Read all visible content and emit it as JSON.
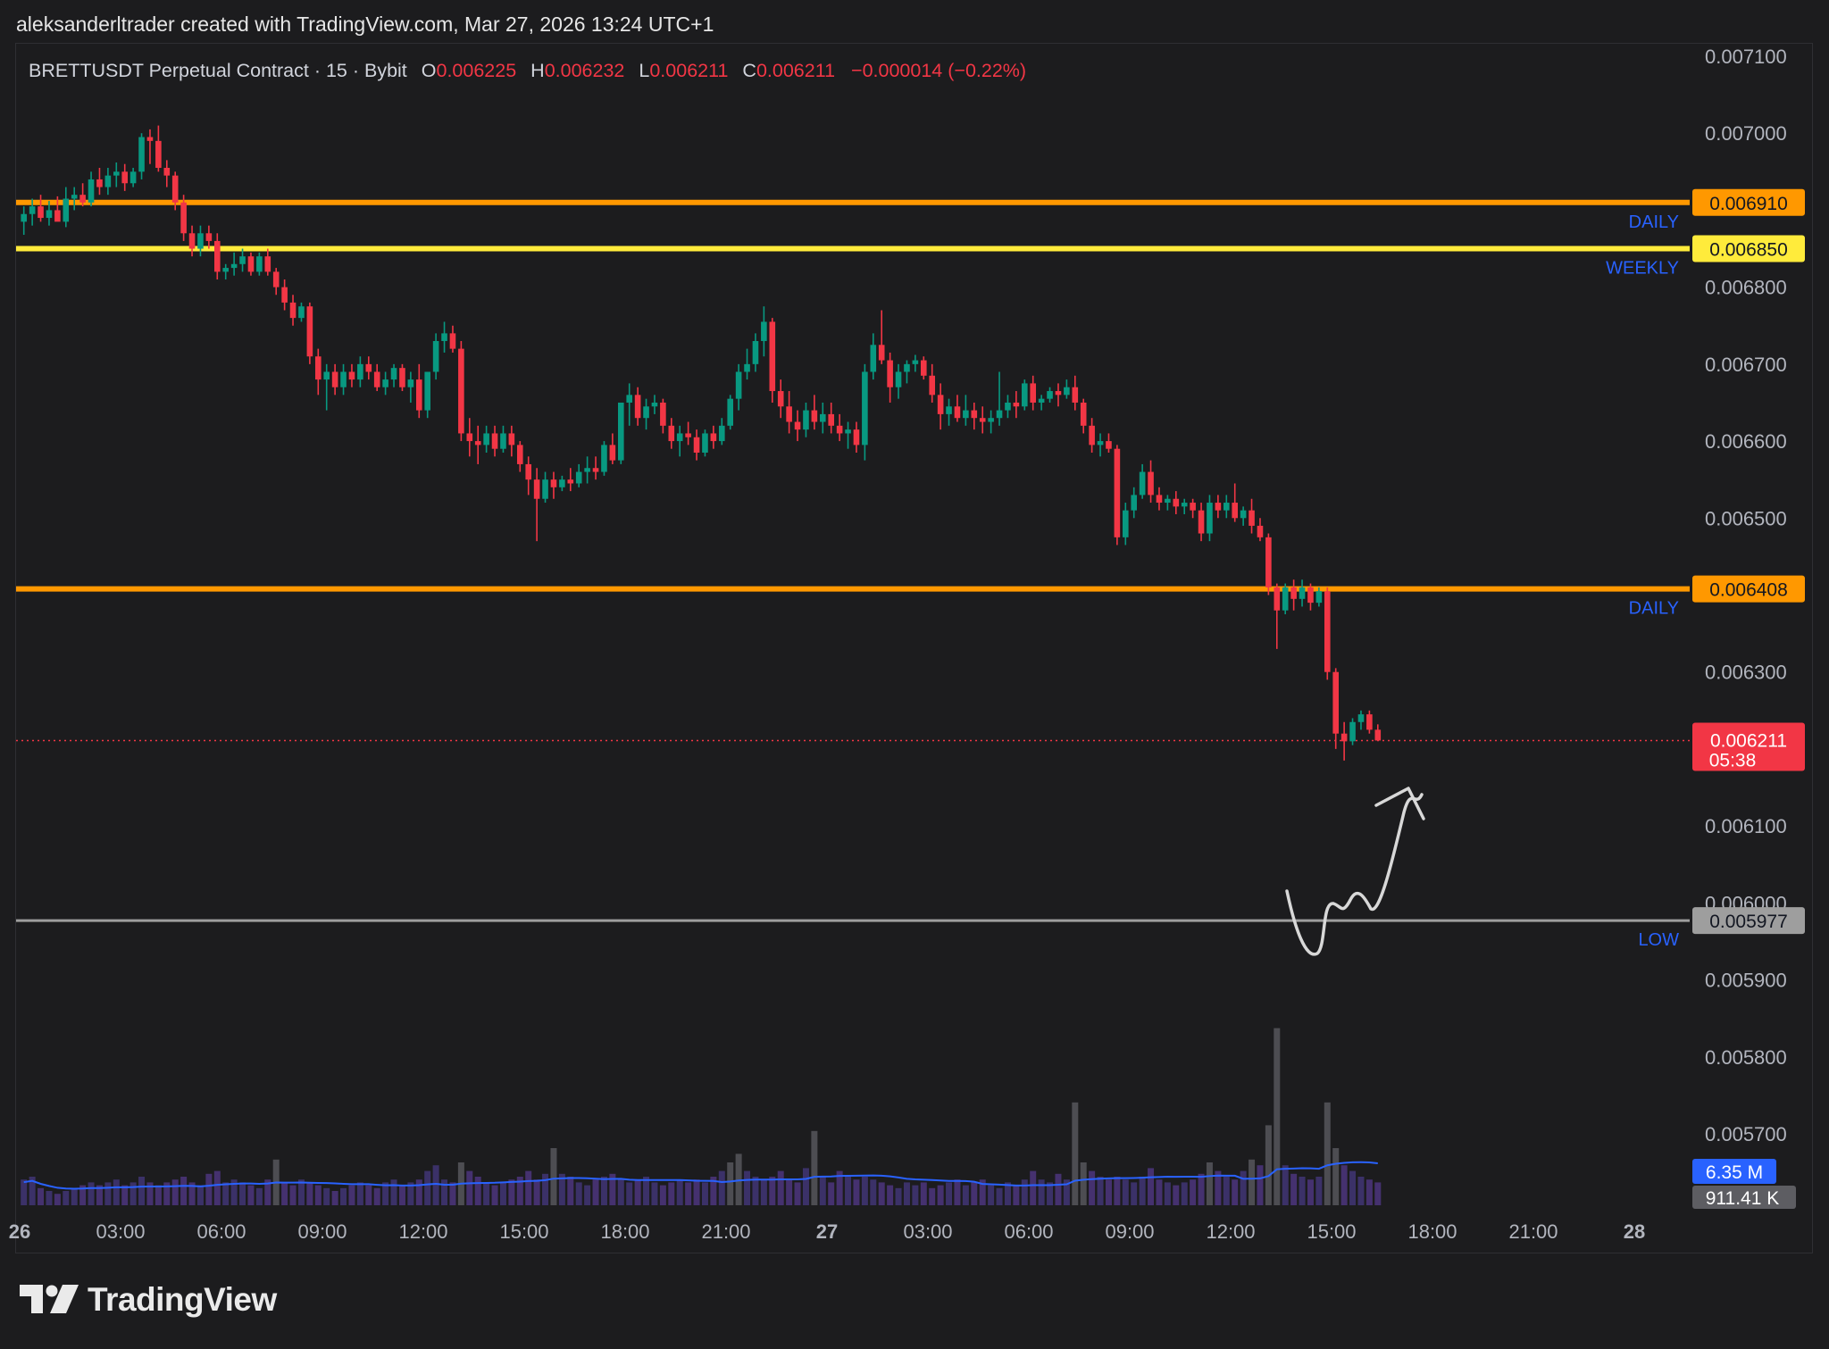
{
  "header": {
    "attribution": "aleksanderltrader created with TradingView.com, Mar 27, 2026 13:24 UTC+1"
  },
  "legend": {
    "symbol": "BRETTUSDT Perpetual Contract · 15 · Bybit",
    "open_label": "O",
    "open": "0.006225",
    "high_label": "H",
    "high": "0.006232",
    "low_label": "L",
    "low": "0.006211",
    "close_label": "C",
    "close": "0.006211",
    "change": "−0.000014 (−0.22%)"
  },
  "footer": {
    "brand": "TradingView"
  },
  "colors": {
    "background": "#1c1c1e",
    "bull": "#089981",
    "bear": "#f23645",
    "daily_level": "#ff9800",
    "weekly_level": "#ffeb3b",
    "low_level": "#9e9e9e",
    "label_blue": "#2962ff",
    "volume_ma": "#2962ff"
  },
  "chart_data": {
    "type": "candlestick",
    "symbol": "BRETTUSDT",
    "timeframe": "15",
    "exchange": "Bybit",
    "ylim": [
      0.00564,
      0.00714
    ],
    "y_ticks": [
      "0.007100",
      "0.007000",
      "0.006800",
      "0.006700",
      "0.006600",
      "0.006500",
      "0.006300",
      "0.006100",
      "0.006000",
      "0.005900",
      "0.005800",
      "0.005700"
    ],
    "x_ticks": [
      {
        "label": "26",
        "bold": true
      },
      {
        "label": "03:00"
      },
      {
        "label": "06:00"
      },
      {
        "label": "09:00"
      },
      {
        "label": "12:00"
      },
      {
        "label": "15:00"
      },
      {
        "label": "18:00"
      },
      {
        "label": "21:00"
      },
      {
        "label": "27",
        "bold": true
      },
      {
        "label": "03:00"
      },
      {
        "label": "06:00"
      },
      {
        "label": "09:00"
      },
      {
        "label": "12:00"
      },
      {
        "label": "15:00"
      },
      {
        "label": "18:00"
      },
      {
        "label": "21:00"
      },
      {
        "label": "28",
        "bold": true
      }
    ],
    "levels": [
      {
        "name": "DAILY",
        "value": 0.00691,
        "label": "0.006910",
        "color": "#ff9800",
        "label_text_color": "#131722"
      },
      {
        "name": "WEEKLY",
        "value": 0.00685,
        "label": "0.006850",
        "color": "#ffeb3b",
        "label_text_color": "#131722"
      },
      {
        "name": "DAILY",
        "value": 0.006408,
        "label": "0.006408",
        "color": "#ff9800",
        "label_text_color": "#131722"
      },
      {
        "name": "LOW",
        "value": 0.005977,
        "label": "0.005977",
        "color": "#9e9e9e",
        "label_text_color": "#131722"
      }
    ],
    "last_price": {
      "value": 0.006211,
      "label": "0.006211",
      "countdown": "05:38"
    },
    "volume_ma_label": "6.35 M",
    "volume_label": "911.41 K",
    "candles": [
      [
        0.006885,
        0.006905,
        0.006868,
        0.006895
      ],
      [
        0.006895,
        0.006915,
        0.00688,
        0.006905
      ],
      [
        0.006905,
        0.00692,
        0.006885,
        0.00689
      ],
      [
        0.00689,
        0.006912,
        0.00688,
        0.0069
      ],
      [
        0.0069,
        0.006918,
        0.00689,
        0.006885
      ],
      [
        0.006885,
        0.00693,
        0.006878,
        0.006915
      ],
      [
        0.006915,
        0.00693,
        0.0069,
        0.00692
      ],
      [
        0.00692,
        0.006935,
        0.006905,
        0.00691
      ],
      [
        0.00691,
        0.00695,
        0.006905,
        0.00694
      ],
      [
        0.00694,
        0.006955,
        0.00692,
        0.00693
      ],
      [
        0.00693,
        0.006955,
        0.00692,
        0.006945
      ],
      [
        0.006945,
        0.006962,
        0.00693,
        0.00695
      ],
      [
        0.00695,
        0.00696,
        0.006925,
        0.006935
      ],
      [
        0.006935,
        0.006955,
        0.00693,
        0.00695
      ],
      [
        0.00695,
        0.007,
        0.00694,
        0.006995
      ],
      [
        0.006995,
        0.007005,
        0.00696,
        0.00699
      ],
      [
        0.00699,
        0.00701,
        0.00695,
        0.006955
      ],
      [
        0.006955,
        0.006965,
        0.00693,
        0.006945
      ],
      [
        0.006945,
        0.00695,
        0.0069,
        0.00691
      ],
      [
        0.00691,
        0.00692,
        0.00686,
        0.00687
      ],
      [
        0.00687,
        0.00688,
        0.00684,
        0.00685
      ],
      [
        0.00685,
        0.00688,
        0.00684,
        0.00687
      ],
      [
        0.00687,
        0.00688,
        0.00685,
        0.00686
      ],
      [
        0.00686,
        0.00687,
        0.00681,
        0.00682
      ],
      [
        0.00682,
        0.00683,
        0.00681,
        0.006825
      ],
      [
        0.006825,
        0.006845,
        0.006815,
        0.00683
      ],
      [
        0.00683,
        0.00685,
        0.00682,
        0.00684
      ],
      [
        0.00684,
        0.006845,
        0.006815,
        0.00682
      ],
      [
        0.00682,
        0.006845,
        0.006815,
        0.00684
      ],
      [
        0.00684,
        0.00685,
        0.006815,
        0.00682
      ],
      [
        0.00682,
        0.006825,
        0.00679,
        0.0068
      ],
      [
        0.0068,
        0.00681,
        0.00677,
        0.00678
      ],
      [
        0.00678,
        0.00679,
        0.00675,
        0.00676
      ],
      [
        0.00676,
        0.00678,
        0.006755,
        0.006775
      ],
      [
        0.006775,
        0.00678,
        0.0067,
        0.00671
      ],
      [
        0.00671,
        0.00672,
        0.00666,
        0.00668
      ],
      [
        0.00668,
        0.0067,
        0.00664,
        0.00669
      ],
      [
        0.00669,
        0.0067,
        0.00666,
        0.00667
      ],
      [
        0.00667,
        0.0067,
        0.00666,
        0.00669
      ],
      [
        0.00669,
        0.0067,
        0.00667,
        0.00668
      ],
      [
        0.00668,
        0.00671,
        0.00667,
        0.0067
      ],
      [
        0.0067,
        0.00671,
        0.00668,
        0.00669
      ],
      [
        0.00669,
        0.0067,
        0.006665,
        0.00667
      ],
      [
        0.00667,
        0.00669,
        0.00666,
        0.00668
      ],
      [
        0.00668,
        0.0067,
        0.00667,
        0.006695
      ],
      [
        0.006695,
        0.0067,
        0.006665,
        0.00667
      ],
      [
        0.00667,
        0.00669,
        0.00665,
        0.00668
      ],
      [
        0.00668,
        0.0067,
        0.00663,
        0.00664
      ],
      [
        0.00664,
        0.00669,
        0.00663,
        0.00669
      ],
      [
        0.00669,
        0.00674,
        0.00668,
        0.00673
      ],
      [
        0.00673,
        0.006755,
        0.006715,
        0.00674
      ],
      [
        0.00674,
        0.00675,
        0.006715,
        0.00672
      ],
      [
        0.00672,
        0.00673,
        0.0066,
        0.00661
      ],
      [
        0.00661,
        0.00663,
        0.00658,
        0.0066
      ],
      [
        0.0066,
        0.00662,
        0.00657,
        0.006595
      ],
      [
        0.006595,
        0.00662,
        0.006585,
        0.00661
      ],
      [
        0.00661,
        0.00662,
        0.00658,
        0.00659
      ],
      [
        0.00659,
        0.00662,
        0.006585,
        0.00661
      ],
      [
        0.00661,
        0.00662,
        0.00658,
        0.006595
      ],
      [
        0.006595,
        0.0066,
        0.00656,
        0.00657
      ],
      [
        0.00657,
        0.00658,
        0.00653,
        0.00655
      ],
      [
        0.00655,
        0.006565,
        0.00647,
        0.006525
      ],
      [
        0.006525,
        0.00656,
        0.00652,
        0.00655
      ],
      [
        0.00655,
        0.00656,
        0.006525,
        0.00654
      ],
      [
        0.00654,
        0.006555,
        0.006535,
        0.00655
      ],
      [
        0.00655,
        0.006565,
        0.006535,
        0.006545
      ],
      [
        0.006545,
        0.00657,
        0.00654,
        0.00656
      ],
      [
        0.00656,
        0.00658,
        0.006545,
        0.006565
      ],
      [
        0.006565,
        0.00658,
        0.00655,
        0.00656
      ],
      [
        0.00656,
        0.0066,
        0.006555,
        0.006595
      ],
      [
        0.006595,
        0.00661,
        0.00657,
        0.006575
      ],
      [
        0.006575,
        0.00665,
        0.00657,
        0.00665
      ],
      [
        0.00665,
        0.006675,
        0.00662,
        0.00666
      ],
      [
        0.00666,
        0.00667,
        0.00662,
        0.00663
      ],
      [
        0.00663,
        0.006655,
        0.006615,
        0.006645
      ],
      [
        0.006645,
        0.00666,
        0.006635,
        0.00665
      ],
      [
        0.00665,
        0.006655,
        0.00661,
        0.00662
      ],
      [
        0.00662,
        0.00663,
        0.00659,
        0.0066
      ],
      [
        0.0066,
        0.00662,
        0.00658,
        0.00661
      ],
      [
        0.00661,
        0.006625,
        0.006595,
        0.006605
      ],
      [
        0.006605,
        0.006615,
        0.006575,
        0.006585
      ],
      [
        0.006585,
        0.006615,
        0.00658,
        0.00661
      ],
      [
        0.00661,
        0.00662,
        0.00659,
        0.0066
      ],
      [
        0.0066,
        0.00663,
        0.006595,
        0.00662
      ],
      [
        0.00662,
        0.00666,
        0.006615,
        0.006655
      ],
      [
        0.006655,
        0.0067,
        0.00664,
        0.00669
      ],
      [
        0.00669,
        0.00672,
        0.00668,
        0.0067
      ],
      [
        0.0067,
        0.00674,
        0.00669,
        0.00673
      ],
      [
        0.00673,
        0.006775,
        0.00671,
        0.006755
      ],
      [
        0.006755,
        0.00676,
        0.00665,
        0.006665
      ],
      [
        0.006665,
        0.00668,
        0.00663,
        0.006645
      ],
      [
        0.006645,
        0.006665,
        0.00661,
        0.006625
      ],
      [
        0.006625,
        0.00664,
        0.0066,
        0.006615
      ],
      [
        0.006615,
        0.00665,
        0.006605,
        0.00664
      ],
      [
        0.00664,
        0.00666,
        0.006615,
        0.006625
      ],
      [
        0.006625,
        0.00665,
        0.00661,
        0.006635
      ],
      [
        0.006635,
        0.00665,
        0.00661,
        0.00662
      ],
      [
        0.00662,
        0.006635,
        0.0066,
        0.00661
      ],
      [
        0.00661,
        0.006625,
        0.00659,
        0.006615
      ],
      [
        0.006615,
        0.006625,
        0.006585,
        0.006595
      ],
      [
        0.006595,
        0.0067,
        0.006575,
        0.00669
      ],
      [
        0.00669,
        0.00674,
        0.00668,
        0.006725
      ],
      [
        0.006725,
        0.00677,
        0.0067,
        0.006705
      ],
      [
        0.006705,
        0.006715,
        0.00665,
        0.00667
      ],
      [
        0.00667,
        0.0067,
        0.006655,
        0.00669
      ],
      [
        0.00669,
        0.006705,
        0.006675,
        0.0067
      ],
      [
        0.0067,
        0.006712,
        0.00669,
        0.006705
      ],
      [
        0.006705,
        0.00671,
        0.00668,
        0.006685
      ],
      [
        0.006685,
        0.0067,
        0.00665,
        0.00666
      ],
      [
        0.00666,
        0.006675,
        0.006615,
        0.006635
      ],
      [
        0.006635,
        0.006655,
        0.00662,
        0.006645
      ],
      [
        0.006645,
        0.00666,
        0.006625,
        0.00663
      ],
      [
        0.00663,
        0.00666,
        0.00662,
        0.00664
      ],
      [
        0.00664,
        0.00665,
        0.006615,
        0.00663
      ],
      [
        0.00663,
        0.006645,
        0.00661,
        0.006625
      ],
      [
        0.006625,
        0.00664,
        0.00661,
        0.00663
      ],
      [
        0.00663,
        0.00669,
        0.00662,
        0.00664
      ],
      [
        0.00664,
        0.00666,
        0.00663,
        0.00665
      ],
      [
        0.00665,
        0.006665,
        0.00663,
        0.006645
      ],
      [
        0.006645,
        0.00668,
        0.00664,
        0.006675
      ],
      [
        0.006675,
        0.006685,
        0.00664,
        0.00665
      ],
      [
        0.00665,
        0.00666,
        0.00664,
        0.006655
      ],
      [
        0.006655,
        0.00667,
        0.00665,
        0.006665
      ],
      [
        0.006665,
        0.006675,
        0.006645,
        0.00666
      ],
      [
        0.00666,
        0.00668,
        0.006655,
        0.00667
      ],
      [
        0.00667,
        0.006685,
        0.00664,
        0.00665
      ],
      [
        0.00665,
        0.006655,
        0.00661,
        0.00662
      ],
      [
        0.00662,
        0.00663,
        0.006585,
        0.006595
      ],
      [
        0.006595,
        0.00661,
        0.00658,
        0.0066
      ],
      [
        0.0066,
        0.00661,
        0.006585,
        0.00659
      ],
      [
        0.00659,
        0.006595,
        0.006465,
        0.006475
      ],
      [
        0.006475,
        0.00652,
        0.006465,
        0.00651
      ],
      [
        0.00651,
        0.00654,
        0.0065,
        0.00653
      ],
      [
        0.00653,
        0.00657,
        0.006525,
        0.00656
      ],
      [
        0.00656,
        0.006575,
        0.00652,
        0.00653
      ],
      [
        0.00653,
        0.00654,
        0.00651,
        0.00652
      ],
      [
        0.00652,
        0.00653,
        0.00651,
        0.006525
      ],
      [
        0.006525,
        0.006535,
        0.006505,
        0.006515
      ],
      [
        0.006515,
        0.006525,
        0.006505,
        0.00652
      ],
      [
        0.00652,
        0.006525,
        0.0065,
        0.00651
      ],
      [
        0.00651,
        0.00652,
        0.00647,
        0.00648
      ],
      [
        0.00648,
        0.00653,
        0.00647,
        0.00652
      ],
      [
        0.00652,
        0.00653,
        0.0065,
        0.00651
      ],
      [
        0.00651,
        0.00653,
        0.0065,
        0.00652
      ],
      [
        0.00652,
        0.006545,
        0.006495,
        0.0065
      ],
      [
        0.0065,
        0.006515,
        0.00649,
        0.00651
      ],
      [
        0.00651,
        0.006525,
        0.00648,
        0.00649
      ],
      [
        0.00649,
        0.0065,
        0.00647,
        0.006475
      ],
      [
        0.006475,
        0.00648,
        0.0064,
        0.00641
      ],
      [
        0.00641,
        0.006415,
        0.00633,
        0.00638
      ],
      [
        0.00638,
        0.006415,
        0.006375,
        0.00641
      ],
      [
        0.00641,
        0.00642,
        0.00638,
        0.006395
      ],
      [
        0.006395,
        0.00642,
        0.006385,
        0.00641
      ],
      [
        0.00641,
        0.006415,
        0.00638,
        0.00639
      ],
      [
        0.00639,
        0.00641,
        0.006385,
        0.006405
      ],
      [
        0.006405,
        0.00641,
        0.00629,
        0.0063
      ],
      [
        0.0063,
        0.006305,
        0.0062,
        0.00622
      ],
      [
        0.00622,
        0.006235,
        0.006185,
        0.00621
      ],
      [
        0.00621,
        0.00624,
        0.006205,
        0.006235
      ],
      [
        0.006235,
        0.00625,
        0.006225,
        0.006245
      ],
      [
        0.006245,
        0.00625,
        0.00622,
        0.006225
      ],
      [
        0.006225,
        0.006232,
        0.006211,
        0.006211
      ]
    ],
    "volumes": [
      0.9,
      1.0,
      0.6,
      0.5,
      0.4,
      0.5,
      0.6,
      0.7,
      0.8,
      0.7,
      0.8,
      0.9,
      0.7,
      0.8,
      1.0,
      0.8,
      0.7,
      0.8,
      0.9,
      1.0,
      0.8,
      0.7,
      1.1,
      1.2,
      0.8,
      0.9,
      0.8,
      0.7,
      0.6,
      0.9,
      1.6,
      0.8,
      0.7,
      0.9,
      0.8,
      0.7,
      0.6,
      0.5,
      0.6,
      0.7,
      0.8,
      0.7,
      0.6,
      0.8,
      0.9,
      0.7,
      0.8,
      0.9,
      1.2,
      1.4,
      0.9,
      0.8,
      1.5,
      1.2,
      1.0,
      0.8,
      0.7,
      0.8,
      0.9,
      1.0,
      1.2,
      0.9,
      1.1,
      2.0,
      1.1,
      1.0,
      0.8,
      0.7,
      0.9,
      1.0,
      1.1,
      0.9,
      0.8,
      0.9,
      1.0,
      0.8,
      0.7,
      0.8,
      0.9,
      0.8,
      0.9,
      0.8,
      1.0,
      1.2,
      1.5,
      1.8,
      1.2,
      1.0,
      0.9,
      1.0,
      1.2,
      0.9,
      0.8,
      1.3,
      2.6,
      1.0,
      0.8,
      1.2,
      1.0,
      0.9,
      1.0,
      0.9,
      0.8,
      0.7,
      0.6,
      0.8,
      0.7,
      0.8,
      0.6,
      0.7,
      0.8,
      0.9,
      0.7,
      0.8,
      0.9,
      0.7,
      0.6,
      0.8,
      0.7,
      0.9,
      1.2,
      0.9,
      0.8,
      1.1,
      0.9,
      3.6,
      1.5,
      1.2,
      1.0,
      0.9,
      1.0,
      0.9,
      0.8,
      1.0,
      1.3,
      0.9,
      0.8,
      0.7,
      0.8,
      0.9,
      1.1,
      1.5,
      1.2,
      1.0,
      0.9,
      1.2,
      1.6,
      1.4,
      2.8,
      6.2,
      1.4,
      1.1,
      1.0,
      0.9,
      1.0,
      3.6,
      2.0,
      1.4,
      1.2,
      1.0,
      0.9,
      0.8
    ]
  }
}
